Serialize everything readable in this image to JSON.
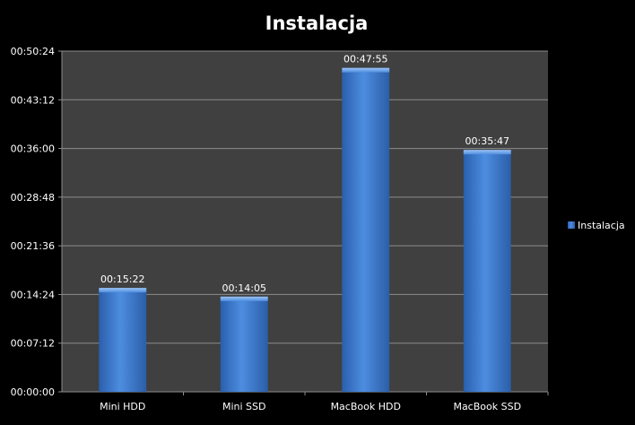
{
  "chart_data": {
    "type": "bar",
    "title": "Instalacja",
    "categories": [
      "Mini HDD",
      "Mini SSD",
      "MacBook HDD",
      "MacBook SSD"
    ],
    "series": [
      {
        "name": "Instalacja",
        "values": [
          "00:15:22",
          "00:14:05",
          "00:47:55",
          "00:35:47"
        ],
        "value_seconds": [
          922,
          845,
          2875,
          2147
        ]
      }
    ],
    "xlabel": "",
    "ylabel": "",
    "ylim_seconds": [
      0,
      3024
    ],
    "yticks": [
      "00:00:00",
      "00:07:12",
      "00:14:24",
      "00:21:36",
      "00:28:48",
      "00:36:00",
      "00:43:12",
      "00:50:24"
    ],
    "ytick_seconds": [
      0,
      432,
      864,
      1296,
      1728,
      2160,
      2592,
      3024
    ],
    "grid": true,
    "legend_position": "right",
    "colors": {
      "background": "#000000",
      "plot_area": "#404040",
      "grid": "#8c8c8c",
      "bar": "#3f7ed4",
      "text": "#ffffff"
    }
  }
}
